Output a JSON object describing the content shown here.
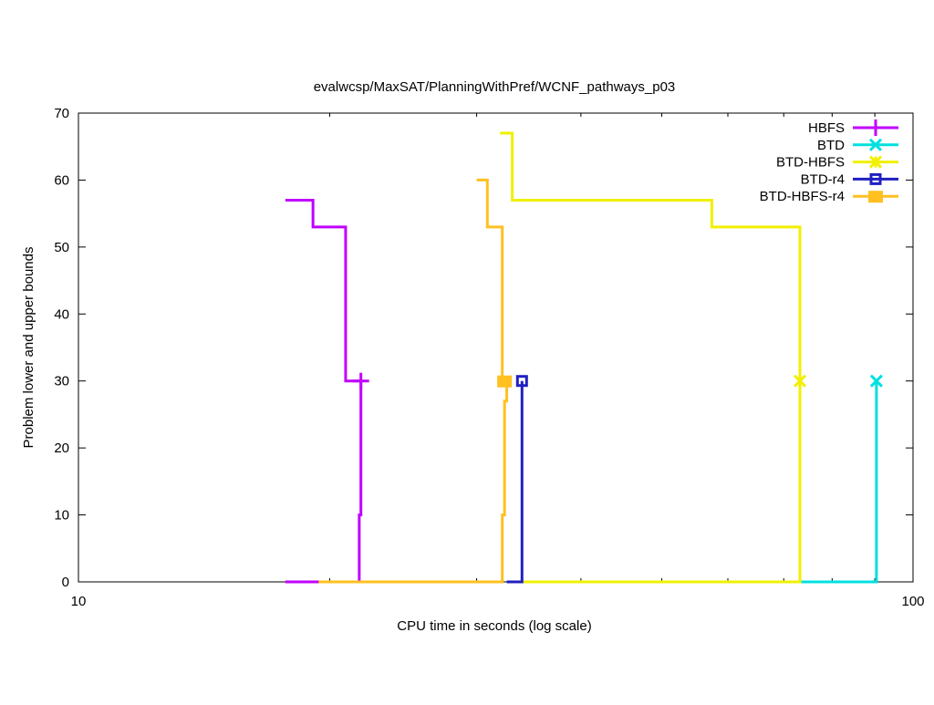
{
  "chart_data": {
    "type": "line",
    "title": "evalwcsp/MaxSAT/PlanningWithPref/WCNF_pathways_p03",
    "xlabel": "CPU time in seconds (log scale)",
    "ylabel": "Problem lower and upper bounds",
    "xscale": "log",
    "xlim": [
      10,
      100
    ],
    "ylim": [
      0,
      70
    ],
    "xticks": [
      "10",
      "100"
    ],
    "yticks": [
      "0",
      "10",
      "20",
      "30",
      "40",
      "50",
      "60",
      "70"
    ],
    "grid": false,
    "legend_position": "top-right",
    "line_style": "steps",
    "series": [
      {
        "name": "HBFS",
        "color": "#c000ff",
        "marker": "plus",
        "upper": [
          [
            17.7,
            57
          ],
          [
            19.1,
            53
          ],
          [
            20.9,
            30
          ],
          [
            21.8,
            30
          ]
        ],
        "lower": [
          [
            17.7,
            0
          ],
          [
            21.7,
            10
          ],
          [
            21.8,
            30
          ]
        ]
      },
      {
        "name": "BTD",
        "color": "#00e0e0",
        "marker": "cross",
        "upper": [
          [
            90.4,
            30
          ]
        ],
        "lower": [
          [
            73.2,
            0
          ],
          [
            90.4,
            30
          ]
        ]
      },
      {
        "name": "BTD-HBFS",
        "color": "#f0f000",
        "marker": "star",
        "upper": [
          [
            32.0,
            67
          ],
          [
            33.1,
            57
          ],
          [
            57.4,
            53
          ],
          [
            73.2,
            30
          ]
        ],
        "lower": [
          [
            34.0,
            0
          ],
          [
            73.2,
            30
          ]
        ]
      },
      {
        "name": "BTD-r4",
        "color": "#2020c0",
        "marker": "open-square",
        "upper": [
          [
            34.0,
            30
          ]
        ],
        "lower": [
          [
            32.6,
            0
          ],
          [
            34.0,
            30
          ]
        ]
      },
      {
        "name": "BTD-HBFS-r4",
        "color": "#ffc020",
        "marker": "filled-square",
        "upper": [
          [
            30.0,
            60
          ],
          [
            30.9,
            53
          ],
          [
            32.2,
            30
          ],
          [
            32.4,
            30
          ]
        ],
        "lower": [
          [
            19.4,
            0
          ],
          [
            32.2,
            10
          ],
          [
            32.4,
            27
          ],
          [
            32.6,
            30
          ]
        ]
      }
    ]
  }
}
